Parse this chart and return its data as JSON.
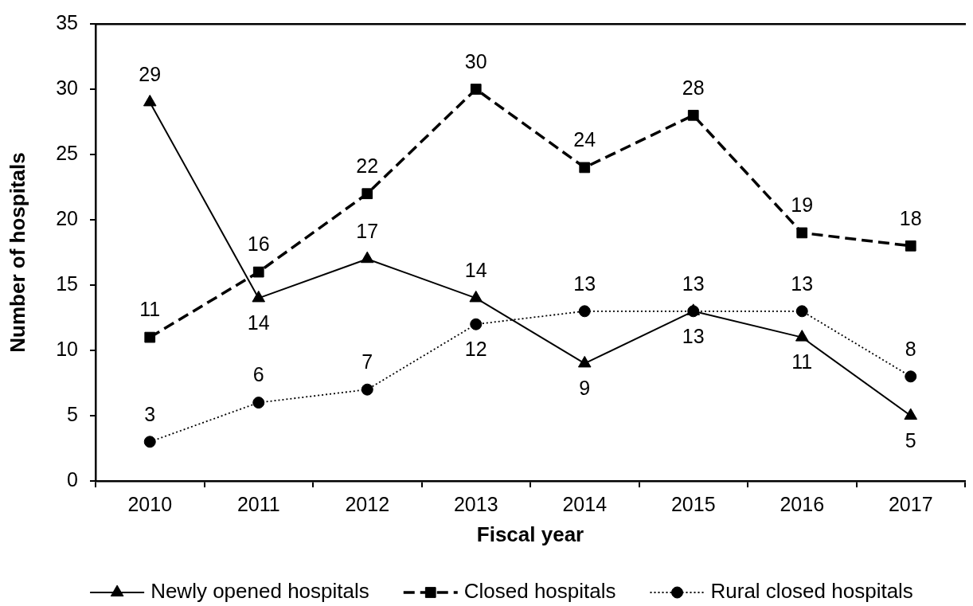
{
  "chart_data": {
    "type": "line",
    "xlabel": "Fiscal year",
    "ylabel": "Number of hospitals",
    "categories": [
      "2010",
      "2011",
      "2012",
      "2013",
      "2014",
      "2015",
      "2016",
      "2017"
    ],
    "ylim": [
      0,
      35
    ],
    "yticks": [
      0,
      5,
      10,
      15,
      20,
      25,
      30,
      35
    ],
    "grid": false,
    "legend": "bottom",
    "data_labels": true,
    "series": [
      {
        "name": "Newly opened hospitals",
        "color": "#000000",
        "marker": "triangle",
        "line_style": "solid",
        "values": [
          29,
          14,
          17,
          14,
          9,
          13,
          11,
          5
        ]
      },
      {
        "name": "Closed hospitals",
        "color": "#000000",
        "marker": "square",
        "line_style": "dashed",
        "values": [
          11,
          16,
          22,
          30,
          24,
          28,
          19,
          18
        ]
      },
      {
        "name": "Rural closed hospitals",
        "color": "#000000",
        "marker": "circle",
        "line_style": "dotted",
        "values": [
          3,
          6,
          7,
          12,
          13,
          13,
          13,
          8
        ]
      }
    ]
  }
}
